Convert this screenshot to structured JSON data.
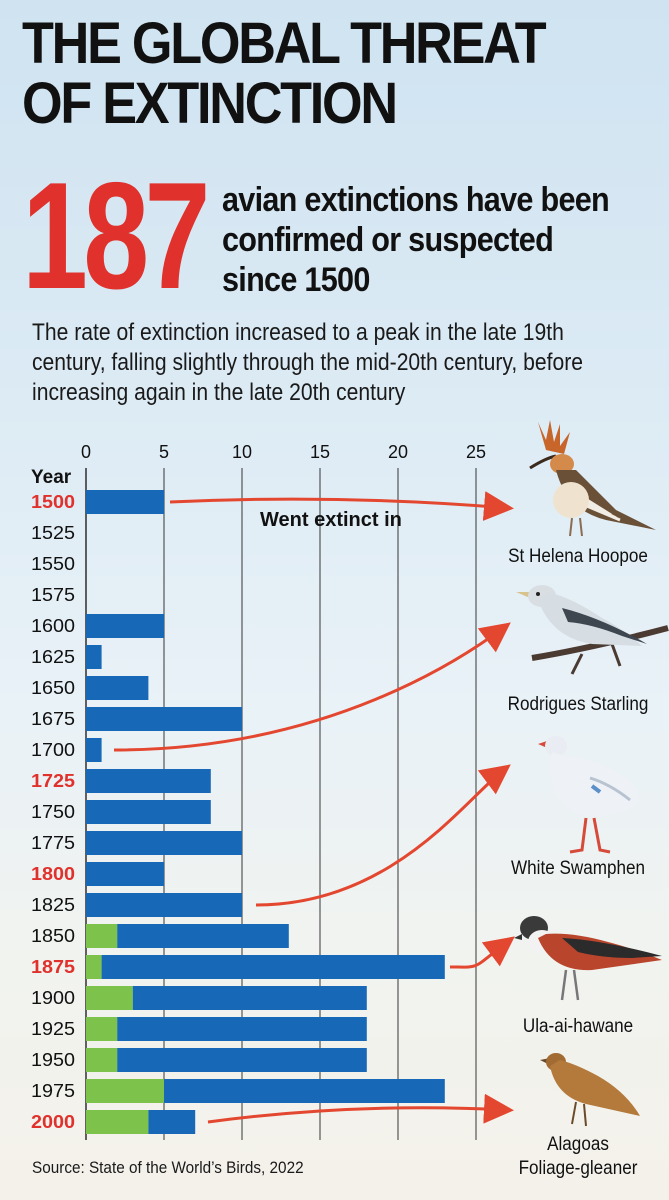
{
  "header": {
    "title": "THE GLOBAL THREAT OF EXTINCTION",
    "big_number": "187",
    "headline": "avian extinctions have been confirmed or suspected since 1500",
    "subtext": "The rate of extinction increased to a peak in the late 19th century, falling slightly through the mid-20th century, before increasing again in the late 20th century"
  },
  "chart_data": {
    "type": "bar",
    "orientation": "horizontal",
    "stacked": true,
    "y_axis_label": "Year",
    "x_ticks": [
      0,
      5,
      10,
      15,
      20,
      25
    ],
    "xlim": [
      0,
      27
    ],
    "grid": true,
    "categories": [
      "1500",
      "1525",
      "1550",
      "1575",
      "1600",
      "1625",
      "1650",
      "1675",
      "1700",
      "1725",
      "1750",
      "1775",
      "1800",
      "1825",
      "1850",
      "1875",
      "1900",
      "1925",
      "1950",
      "1975",
      "2000"
    ],
    "highlighted_categories": [
      "1500",
      "1725",
      "1800",
      "1875",
      "2000"
    ],
    "series": [
      {
        "values": [
          0,
          0,
          0,
          0,
          0,
          0,
          0,
          0,
          0,
          0,
          0,
          0,
          0,
          0,
          2,
          1,
          3,
          2,
          2,
          5,
          4
        ],
        "color": "#7dc24b"
      },
      {
        "values": [
          5,
          0,
          0,
          0,
          5,
          1,
          4,
          10,
          1,
          8,
          8,
          10,
          5,
          10,
          11,
          22,
          15,
          16,
          16,
          18,
          3
        ],
        "color": "#1769b8"
      }
    ],
    "annotation": "Went extinct in"
  },
  "birds": [
    {
      "name": "St Helena Hoopoe",
      "from": "1500"
    },
    {
      "name": "Rodrigues Starling",
      "from": "1700"
    },
    {
      "name": "White Swamphen",
      "from": "1825"
    },
    {
      "name": "Ula-ai-hawane",
      "from": "1875"
    },
    {
      "name": "Alagoas Foliage-gleaner",
      "name_line1": "Alagoas",
      "name_line2": "Foliage-gleaner",
      "from": "2000"
    }
  ],
  "source": "Source: State of the World’s Birds, 2022",
  "colors": {
    "accent_red": "#e0312c",
    "bar_blue": "#1769b8",
    "bar_green": "#7dc24b",
    "arrow": "#e4472f"
  }
}
